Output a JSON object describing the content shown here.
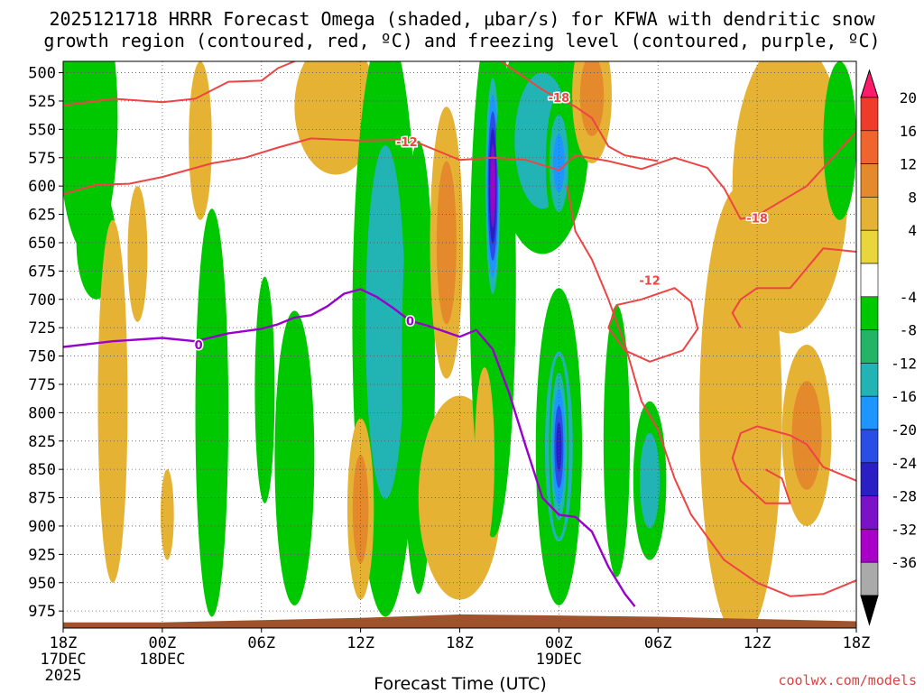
{
  "chart_data": {
    "type": "heatmap",
    "title_line1": "2025121718 HRRR Forecast Omega (shaded, μbar/s) for KFWA with dendritic snow",
    "title_line2": "growth region (contoured, red, ºC) and freezing level (contoured, purple, ºC)",
    "xlabel": "Forecast Time (UTC)",
    "credit": "coolwx.com/models",
    "x_ticks": [
      {
        "h": 0,
        "l1": "18Z",
        "l2": "17DEC",
        "l3": "2025"
      },
      {
        "h": 6,
        "l1": "00Z",
        "l2": "18DEC",
        "l3": ""
      },
      {
        "h": 12,
        "l1": "06Z",
        "l2": "",
        "l3": ""
      },
      {
        "h": 18,
        "l1": "12Z",
        "l2": "",
        "l3": ""
      },
      {
        "h": 24,
        "l1": "18Z",
        "l2": "",
        "l3": ""
      },
      {
        "h": 30,
        "l1": "00Z",
        "l2": "19DEC",
        "l3": ""
      },
      {
        "h": 36,
        "l1": "06Z",
        "l2": "",
        "l3": ""
      },
      {
        "h": 42,
        "l1": "12Z",
        "l2": "",
        "l3": ""
      },
      {
        "h": 48,
        "l1": "18Z",
        "l2": "",
        "l3": ""
      }
    ],
    "y_ticks": [
      500,
      525,
      550,
      575,
      600,
      625,
      650,
      675,
      700,
      725,
      750,
      775,
      800,
      825,
      850,
      875,
      900,
      925,
      950,
      975
    ],
    "xlim_hours": [
      0,
      48
    ],
    "ylim_mb": [
      490,
      990
    ],
    "colorbar_labels": [
      "20",
      "16",
      "12",
      "8",
      "4",
      "-4",
      "-8",
      "-12",
      "-16",
      "-20",
      "-24",
      "-28",
      "-32",
      "-36"
    ],
    "colorbar_colors": [
      "#ff1a6b",
      "#ef3b2c",
      "#f0652e",
      "#e58a2c",
      "#e5b233",
      "#e8d63c",
      "#ffffff",
      "#00c800",
      "#24b468",
      "#22b4b4",
      "#1e96ff",
      "#2a4de6",
      "#2a1fc4",
      "#7a12c8",
      "#a800c8",
      "#aaaaaa",
      "#000000"
    ],
    "colors": {
      "red_contour": "#ee4444",
      "purple_contour": "#9900cc",
      "terrain": "#a0522d"
    },
    "contour_labels": [
      {
        "text": "-12",
        "color": "red",
        "h": 20.8,
        "p": 561
      },
      {
        "text": "-18",
        "color": "red",
        "h": 30.0,
        "p": 522
      },
      {
        "text": "-18",
        "color": "red",
        "h": 42.0,
        "p": 628
      },
      {
        "text": "-12",
        "color": "red",
        "h": 35.5,
        "p": 683
      },
      {
        "text": "0",
        "color": "purple",
        "h": 8.2,
        "p": 740
      },
      {
        "text": "0",
        "color": "purple",
        "h": 21.0,
        "p": 719
      }
    ],
    "freezing_level_0C": [
      [
        0,
        742
      ],
      [
        3,
        737
      ],
      [
        6,
        734
      ],
      [
        8,
        737
      ],
      [
        10,
        730
      ],
      [
        12,
        726
      ],
      [
        13,
        722
      ],
      [
        14,
        716
      ],
      [
        15,
        714
      ],
      [
        16,
        706
      ],
      [
        17,
        695
      ],
      [
        18,
        691
      ],
      [
        19,
        698
      ],
      [
        20,
        708
      ],
      [
        21,
        719
      ],
      [
        22,
        723
      ],
      [
        23,
        728
      ],
      [
        24,
        733
      ],
      [
        25,
        727
      ],
      [
        26,
        744
      ],
      [
        27,
        783
      ],
      [
        28,
        830
      ],
      [
        29,
        875
      ],
      [
        30,
        890
      ],
      [
        31,
        892
      ],
      [
        32,
        905
      ],
      [
        33,
        936
      ],
      [
        34,
        960
      ],
      [
        34.6,
        971
      ]
    ],
    "dgz_contours_m12_m18": [
      [
        [
          0,
          607
        ],
        [
          2,
          599
        ],
        [
          4,
          598
        ],
        [
          6,
          592
        ],
        [
          9,
          580
        ],
        [
          11,
          575
        ],
        [
          13,
          566
        ],
        [
          15,
          558
        ],
        [
          18,
          560
        ],
        [
          21,
          559
        ],
        [
          24,
          577
        ],
        [
          26,
          575
        ],
        [
          28,
          577
        ],
        [
          30,
          586
        ],
        [
          31,
          573
        ],
        [
          33,
          578
        ],
        [
          35,
          585
        ],
        [
          37,
          575
        ],
        [
          39,
          584
        ],
        [
          40,
          602
        ],
        [
          41,
          629
        ],
        [
          42,
          626
        ],
        [
          45,
          600
        ],
        [
          48,
          552
        ]
      ],
      [
        [
          0,
          529
        ],
        [
          3,
          523
        ],
        [
          6,
          526
        ],
        [
          8,
          523
        ],
        [
          10,
          508
        ],
        [
          12,
          507
        ],
        [
          13,
          496
        ],
        [
          14,
          490
        ]
      ],
      [
        [
          26.5,
          490
        ],
        [
          28,
          505
        ],
        [
          29,
          515
        ],
        [
          30,
          523
        ],
        [
          31,
          530
        ],
        [
          32,
          540
        ],
        [
          33,
          565
        ],
        [
          34,
          573
        ],
        [
          36,
          578
        ]
      ],
      [
        [
          30.5,
          600
        ],
        [
          31,
          640
        ],
        [
          32,
          665
        ],
        [
          33,
          700
        ],
        [
          34,
          740
        ],
        [
          35,
          790
        ],
        [
          36,
          815
        ],
        [
          37,
          858
        ],
        [
          38,
          890
        ],
        [
          40,
          930
        ],
        [
          42,
          950
        ],
        [
          44,
          962
        ],
        [
          46,
          960
        ],
        [
          48,
          948
        ]
      ],
      [
        [
          35,
          700
        ],
        [
          37,
          690
        ],
        [
          38,
          702
        ],
        [
          38.4,
          726
        ],
        [
          37.5,
          745
        ],
        [
          35.5,
          755
        ],
        [
          34,
          745
        ],
        [
          33,
          725
        ],
        [
          33.5,
          705
        ],
        [
          35,
          700
        ]
      ],
      [
        [
          41,
          725
        ],
        [
          40.5,
          712
        ],
        [
          41,
          700
        ],
        [
          42,
          690
        ],
        [
          44,
          690
        ],
        [
          46,
          655
        ],
        [
          48,
          658
        ]
      ],
      [
        [
          48,
          860
        ],
        [
          46,
          848
        ],
        [
          45,
          828
        ],
        [
          44,
          820
        ],
        [
          42,
          812
        ],
        [
          41,
          818
        ],
        [
          40.5,
          840
        ],
        [
          41,
          860
        ],
        [
          42.5,
          880
        ],
        [
          44,
          880
        ],
        [
          43.5,
          858
        ],
        [
          42.5,
          850
        ]
      ]
    ],
    "omega_cells": [
      {
        "h": 1.5,
        "p": 540,
        "rh": 1.8,
        "rp": 120,
        "v": -6
      },
      {
        "h": 2.0,
        "p": 650,
        "rh": 1.2,
        "rp": 50,
        "v": -6
      },
      {
        "h": 3.0,
        "p": 790,
        "rh": 0.9,
        "rp": 160,
        "v": 5
      },
      {
        "h": 4.5,
        "p": 660,
        "rh": 0.6,
        "rp": 60,
        "v": 5
      },
      {
        "h": 6.3,
        "p": 890,
        "rh": 0.4,
        "rp": 40,
        "v": 5
      },
      {
        "h": 8.3,
        "p": 560,
        "rh": 0.7,
        "rp": 70,
        "v": 5
      },
      {
        "h": 9.0,
        "p": 800,
        "rh": 1.0,
        "rp": 180,
        "v": -6
      },
      {
        "h": 12.2,
        "p": 780,
        "rh": 0.6,
        "rp": 100,
        "v": -6
      },
      {
        "h": 14.0,
        "p": 840,
        "rh": 1.2,
        "rp": 130,
        "v": -6
      },
      {
        "h": 16.5,
        "p": 530,
        "rh": 2.5,
        "rp": 60,
        "v": 5
      },
      {
        "h": 19.5,
        "p": 720,
        "rh": 2.0,
        "rp": 260,
        "v": -10
      },
      {
        "h": 18.0,
        "p": 885,
        "rh": 0.8,
        "rp": 80,
        "v": 9
      },
      {
        "h": 21.5,
        "p": 760,
        "rh": 1.0,
        "rp": 200,
        "v": -6
      },
      {
        "h": 23.2,
        "p": 650,
        "rh": 1.0,
        "rp": 120,
        "v": 9
      },
      {
        "h": 24.0,
        "p": 875,
        "rh": 2.5,
        "rp": 90,
        "v": 7
      },
      {
        "h": 26.0,
        "p": 680,
        "rh": 1.4,
        "rp": 230,
        "v": -9
      },
      {
        "h": 26.0,
        "p": 600,
        "rh": 0.5,
        "rp": 110,
        "v": -32
      },
      {
        "h": 25.5,
        "p": 840,
        "rh": 0.6,
        "rp": 80,
        "v": 5
      },
      {
        "h": 29.0,
        "p": 560,
        "rh": 2.8,
        "rp": 100,
        "v": -12
      },
      {
        "h": 30.0,
        "p": 580,
        "rh": 0.8,
        "rp": 60,
        "v": -16
      },
      {
        "h": 30.0,
        "p": 830,
        "rh": 1.4,
        "rp": 140,
        "v": -12
      },
      {
        "h": 30.0,
        "p": 830,
        "rh": 0.6,
        "rp": 80,
        "v": -24
      },
      {
        "h": 32.0,
        "p": 520,
        "rh": 1.2,
        "rp": 60,
        "v": 9
      },
      {
        "h": 33.5,
        "p": 825,
        "rh": 0.8,
        "rp": 120,
        "v": -8
      },
      {
        "h": 35.5,
        "p": 860,
        "rh": 1.0,
        "rp": 70,
        "v": -10
      },
      {
        "h": 41.0,
        "p": 800,
        "rh": 2.5,
        "rp": 200,
        "v": 6
      },
      {
        "h": 45.0,
        "p": 820,
        "rh": 1.5,
        "rp": 80,
        "v": 10
      },
      {
        "h": 44.0,
        "p": 600,
        "rh": 3.5,
        "rp": 130,
        "v": 5
      },
      {
        "h": 47.0,
        "p": 560,
        "rh": 1.0,
        "rp": 70,
        "v": -6
      }
    ]
  }
}
